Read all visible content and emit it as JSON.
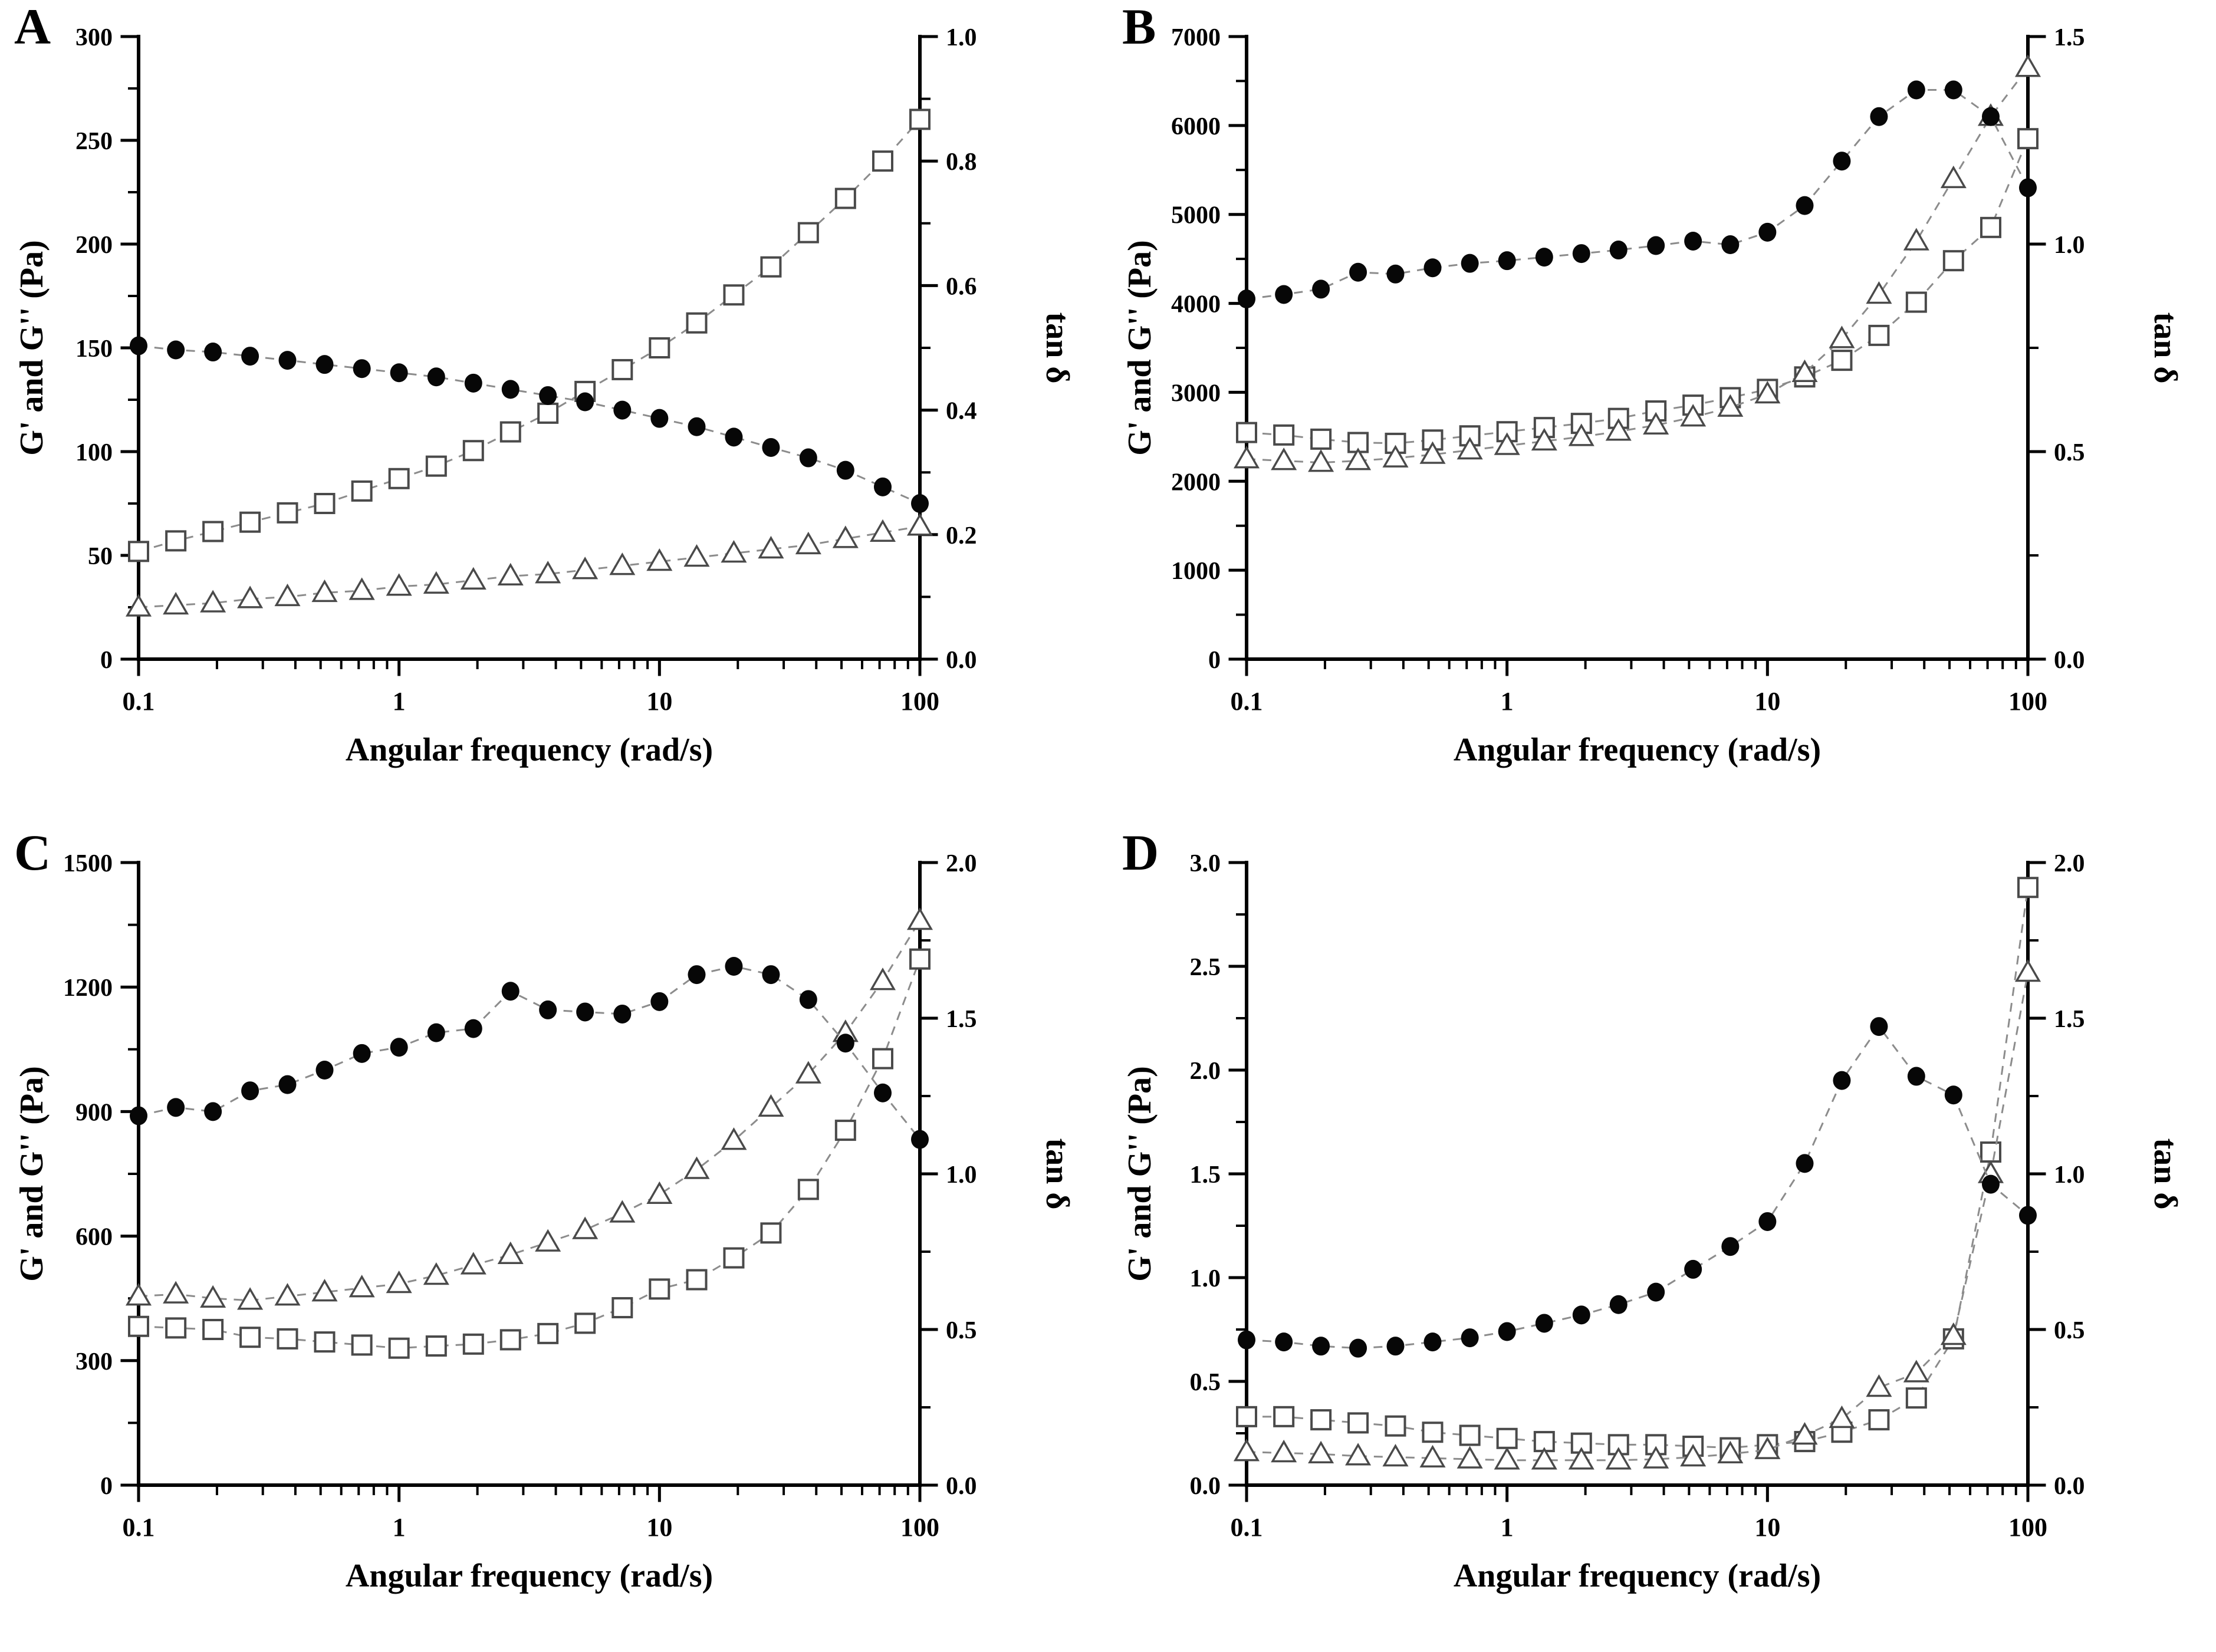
{
  "figure": {
    "x_axis": {
      "title": "Angular frequency (rad/s)",
      "min": 0.1,
      "max": 100,
      "decade_ticks": [
        {
          "v": 0.1,
          "label": "0.1"
        },
        {
          "v": 1,
          "label": "1"
        },
        {
          "v": 10,
          "label": "10"
        },
        {
          "v": 100,
          "label": "100"
        }
      ]
    },
    "x_values": [
      0.1,
      0.139,
      0.193,
      0.268,
      0.373,
      0.518,
      0.72,
      1,
      1.39,
      1.93,
      2.68,
      3.73,
      5.18,
      7.2,
      10,
      13.9,
      19.3,
      26.8,
      37.3,
      51.8,
      72,
      100
    ],
    "chart_data_note": "type: line charts, log x-axis; filled circles and open triangles read on left axis (Pa); open squares read on right axis (tan delta)",
    "panels": [
      {
        "label": "A",
        "left_axis": {
          "title": "G' and G'' (Pa)",
          "min": 0,
          "max": 300,
          "ticks": [
            {
              "v": 0,
              "label": "0"
            },
            {
              "v": 50,
              "label": "50"
            },
            {
              "v": 100,
              "label": "100"
            },
            {
              "v": 150,
              "label": "150"
            },
            {
              "v": 200,
              "label": "200"
            },
            {
              "v": 250,
              "label": "250"
            },
            {
              "v": 300,
              "label": "300"
            }
          ]
        },
        "right_axis": {
          "title": "tan δ",
          "min": 0,
          "max": 1.0,
          "ticks": [
            {
              "v": 0,
              "label": "0.0"
            },
            {
              "v": 0.2,
              "label": "0.2"
            },
            {
              "v": 0.4,
              "label": "0.4"
            },
            {
              "v": 0.6,
              "label": "0.6"
            },
            {
              "v": 0.8,
              "label": "0.8"
            },
            {
              "v": 1,
              "label": "1.0"
            }
          ]
        },
        "series": [
          {
            "name": "filled-circle-series",
            "marker": "filled-circle",
            "axis": "left",
            "values": [
              151,
              149,
              148,
              146,
              144,
              142,
              140,
              138,
              136,
              133,
              130,
              127,
              124,
              120,
              116,
              112,
              107,
              102,
              97,
              91,
              83,
              75
            ]
          },
          {
            "name": "open-triangle-series",
            "marker": "open-triangle",
            "axis": "left",
            "values": [
              25,
              26,
              27,
              29,
              30,
              32,
              33,
              35,
              36,
              38,
              40,
              41,
              43,
              45,
              47,
              49,
              51,
              53,
              55,
              58,
              61,
              64
            ]
          },
          {
            "name": "open-square-series",
            "marker": "open-square",
            "axis": "right",
            "values": [
              0.173,
              0.19,
              0.205,
              0.22,
              0.235,
              0.25,
              0.27,
              0.29,
              0.31,
              0.335,
              0.365,
              0.395,
              0.43,
              0.465,
              0.5,
              0.54,
              0.585,
              0.63,
              0.685,
              0.74,
              0.8,
              0.867
            ]
          }
        ]
      },
      {
        "label": "B",
        "left_axis": {
          "title": "G' and G'' (Pa)",
          "min": 0,
          "max": 7000,
          "ticks": [
            {
              "v": 0,
              "label": "0"
            },
            {
              "v": 1000,
              "label": "1000"
            },
            {
              "v": 2000,
              "label": "2000"
            },
            {
              "v": 3000,
              "label": "3000"
            },
            {
              "v": 4000,
              "label": "4000"
            },
            {
              "v": 5000,
              "label": "5000"
            },
            {
              "v": 6000,
              "label": "6000"
            },
            {
              "v": 7000,
              "label": "7000"
            }
          ]
        },
        "right_axis": {
          "title": "tan δ",
          "min": 0,
          "max": 1.5,
          "ticks": [
            {
              "v": 0,
              "label": "0.0"
            },
            {
              "v": 0.5,
              "label": "0.5"
            },
            {
              "v": 1,
              "label": "1.0"
            },
            {
              "v": 1.5,
              "label": "1.5"
            }
          ]
        },
        "series": [
          {
            "name": "filled-circle-series",
            "marker": "filled-circle",
            "axis": "left",
            "values": [
              4050,
              4100,
              4160,
              4350,
              4330,
              4400,
              4450,
              4480,
              4520,
              4560,
              4600,
              4650,
              4700,
              4660,
              4800,
              5100,
              5600,
              6100,
              6400,
              6400,
              6100,
              5300
            ]
          },
          {
            "name": "open-triangle-series",
            "marker": "open-triangle",
            "axis": "left",
            "values": [
              2250,
              2230,
              2210,
              2230,
              2260,
              2300,
              2350,
              2400,
              2450,
              2500,
              2560,
              2630,
              2720,
              2830,
              2980,
              3220,
              3600,
              4100,
              4700,
              5400,
              6100,
              6650
            ]
          },
          {
            "name": "open-square-series",
            "marker": "open-square",
            "axis": "right",
            "values": [
              0.546,
              0.54,
              0.53,
              0.522,
              0.52,
              0.528,
              0.538,
              0.548,
              0.558,
              0.568,
              0.58,
              0.598,
              0.612,
              0.63,
              0.65,
              0.68,
              0.72,
              0.78,
              0.86,
              0.96,
              1.04,
              1.254
            ]
          }
        ]
      },
      {
        "label": "C",
        "left_axis": {
          "title": "G' and G'' (Pa)",
          "min": 0,
          "max": 1500,
          "ticks": [
            {
              "v": 0,
              "label": "0"
            },
            {
              "v": 300,
              "label": "300"
            },
            {
              "v": 600,
              "label": "600"
            },
            {
              "v": 900,
              "label": "900"
            },
            {
              "v": 1200,
              "label": "1200"
            },
            {
              "v": 1500,
              "label": "1500"
            }
          ]
        },
        "right_axis": {
          "title": "tan δ",
          "min": 0,
          "max": 2.0,
          "ticks": [
            {
              "v": 0,
              "label": "0.0"
            },
            {
              "v": 0.5,
              "label": "0.5"
            },
            {
              "v": 1,
              "label": "1.0"
            },
            {
              "v": 1.5,
              "label": "1.5"
            },
            {
              "v": 2,
              "label": "2.0"
            }
          ]
        },
        "series": [
          {
            "name": "filled-circle-series",
            "marker": "filled-circle",
            "axis": "left",
            "values": [
              890,
              910,
              900,
              950,
              965,
              1000,
              1040,
              1055,
              1090,
              1100,
              1190,
              1145,
              1140,
              1135,
              1165,
              1230,
              1250,
              1230,
              1170,
              1065,
              945,
              833
            ]
          },
          {
            "name": "open-triangle-series",
            "marker": "open-triangle",
            "axis": "left",
            "values": [
              455,
              460,
              450,
              445,
              455,
              465,
              475,
              485,
              505,
              530,
              555,
              585,
              615,
              655,
              700,
              760,
              830,
              910,
              990,
              1090,
              1215,
              1360
            ]
          },
          {
            "name": "open-square-series",
            "marker": "open-square",
            "axis": "right",
            "values": [
              0.51,
              0.505,
              0.5,
              0.475,
              0.47,
              0.46,
              0.45,
              0.44,
              0.447,
              0.453,
              0.467,
              0.487,
              0.52,
              0.57,
              0.63,
              0.66,
              0.73,
              0.81,
              0.95,
              1.14,
              1.37,
              1.69
            ]
          }
        ]
      },
      {
        "label": "D",
        "left_axis": {
          "title": "G' and G'' (Pa)",
          "min": 0,
          "max": 3.0,
          "ticks": [
            {
              "v": 0,
              "label": "0.0"
            },
            {
              "v": 0.5,
              "label": "0.5"
            },
            {
              "v": 1,
              "label": "1.0"
            },
            {
              "v": 1.5,
              "label": "1.5"
            },
            {
              "v": 2,
              "label": "2.0"
            },
            {
              "v": 2.5,
              "label": "2.5"
            },
            {
              "v": 3,
              "label": "3.0"
            }
          ]
        },
        "right_axis": {
          "title": "tan δ",
          "min": 0,
          "max": 2.0,
          "ticks": [
            {
              "v": 0,
              "label": "0.0"
            },
            {
              "v": 0.5,
              "label": "0.5"
            },
            {
              "v": 1,
              "label": "1.0"
            },
            {
              "v": 1.5,
              "label": "1.5"
            },
            {
              "v": 2,
              "label": "2.0"
            }
          ]
        },
        "series": [
          {
            "name": "filled-circle-series",
            "marker": "filled-circle",
            "axis": "left",
            "values": [
              0.7,
              0.69,
              0.67,
              0.66,
              0.67,
              0.69,
              0.71,
              0.74,
              0.78,
              0.82,
              0.87,
              0.93,
              1.04,
              1.15,
              1.27,
              1.55,
              1.95,
              2.21,
              1.97,
              1.88,
              1.45,
              1.3
            ]
          },
          {
            "name": "open-triangle-series",
            "marker": "open-triangle",
            "axis": "left",
            "values": [
              0.16,
              0.155,
              0.15,
              0.14,
              0.135,
              0.13,
              0.125,
              0.12,
              0.12,
              0.12,
              0.12,
              0.125,
              0.135,
              0.15,
              0.17,
              0.24,
              0.32,
              0.47,
              0.54,
              0.72,
              1.5,
              2.47
            ]
          },
          {
            "name": "open-square-series",
            "marker": "open-square",
            "axis": "right",
            "values": [
              0.22,
              0.22,
              0.21,
              0.2,
              0.19,
              0.17,
              0.16,
              0.15,
              0.14,
              0.135,
              0.13,
              0.13,
              0.125,
              0.12,
              0.13,
              0.14,
              0.17,
              0.21,
              0.28,
              0.47,
              1.07,
              1.92
            ]
          }
        ]
      }
    ]
  }
}
